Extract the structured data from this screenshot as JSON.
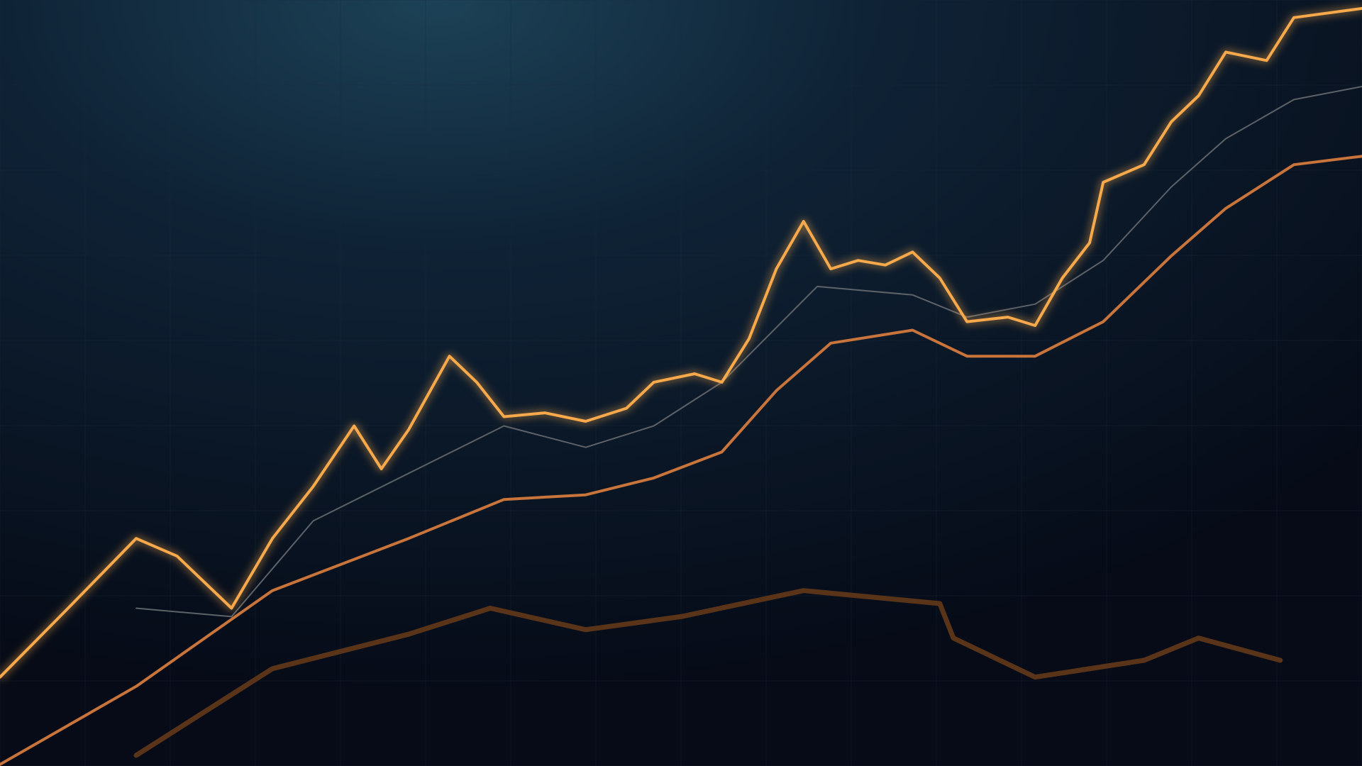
{
  "chart_data": {
    "type": "line",
    "xlim": [
      0,
      100
    ],
    "ylim": [
      0,
      100
    ],
    "grid": true,
    "series": [
      {
        "color": "#5d6168",
        "x": [
          10,
          17,
          23,
          30,
          37,
          43,
          48,
          53,
          60,
          67,
          71,
          76,
          81,
          86,
          90,
          95,
          100
        ],
        "values": [
          20.6,
          19.5,
          32.0,
          38.2,
          44.4,
          41.6,
          44.4,
          50.1,
          62.6,
          61.5,
          58.6,
          60.3,
          66.0,
          75.6,
          81.9,
          87.0,
          88.7
        ]
      },
      {
        "color": "#5a3418",
        "x": [
          10,
          20,
          30,
          36,
          43,
          50,
          59,
          69,
          70,
          76,
          84,
          88,
          94
        ],
        "values": [
          1.4,
          12.7,
          17.2,
          20.6,
          17.8,
          19.5,
          22.9,
          21.2,
          16.7,
          11.6,
          13.8,
          16.7,
          13.8
        ]
      },
      {
        "color": "#c8743a",
        "x": [
          0,
          10,
          20,
          30,
          37,
          43,
          48,
          53,
          57,
          61,
          67,
          71,
          76,
          81,
          86,
          90,
          95,
          100
        ],
        "values": [
          0.2,
          10.4,
          22.9,
          29.7,
          34.8,
          35.4,
          37.6,
          41.0,
          49.0,
          55.2,
          56.9,
          53.5,
          53.5,
          58.0,
          66.6,
          72.8,
          78.5,
          79.6
        ]
      },
      {
        "color": "#f7a94c",
        "x": [
          0,
          5,
          10,
          13,
          17,
          20,
          23,
          26,
          28,
          30,
          33,
          35,
          37,
          40,
          43,
          46,
          48,
          51,
          53,
          55,
          57,
          59,
          61,
          63,
          65,
          67,
          69,
          71,
          74,
          76,
          78,
          80,
          81,
          84,
          86,
          88,
          90,
          93,
          95,
          100
        ],
        "values": [
          11.6,
          20.6,
          29.7,
          27.4,
          20.6,
          29.7,
          36.5,
          44.4,
          38.8,
          43.9,
          53.5,
          50.1,
          45.6,
          46.1,
          45.0,
          46.7,
          50.1,
          51.2,
          50.1,
          55.8,
          64.9,
          71.1,
          64.9,
          66.0,
          65.4,
          67.1,
          63.7,
          58.0,
          58.6,
          57.5,
          63.7,
          68.3,
          76.2,
          78.5,
          84.1,
          87.5,
          93.2,
          92.1,
          97.7,
          98.9
        ]
      }
    ]
  }
}
